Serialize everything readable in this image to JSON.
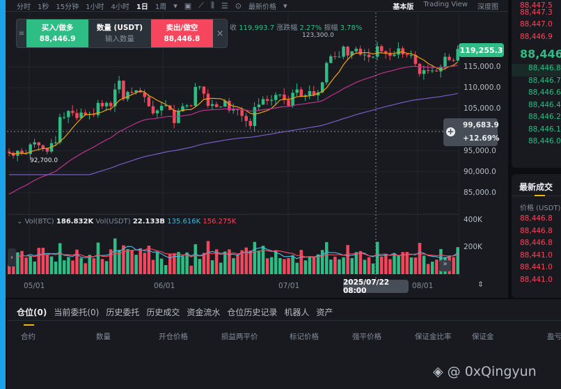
{
  "toolbar": {
    "intervals": [
      "分时",
      "1秒",
      "15分钟",
      "1小时",
      "4小时",
      "1日",
      "1周"
    ],
    "active": "1日",
    "price_type": "最新价格",
    "views": [
      "基本版",
      "Trading View",
      "深度图"
    ],
    "active_view": "基本版"
  },
  "info": {
    "close_label": "收",
    "close": "119,993.7",
    "change_label": "涨跌幅",
    "change": "2.27%",
    "amp_label": "振幅",
    "amp": "3.78%"
  },
  "order_widget": {
    "buy_label": "买入/做多",
    "buy_price": "88,446.9",
    "qty_label": "数量 (USDT)",
    "qty_placeholder": "输入数量",
    "sell_label": "卖出/做空",
    "sell_price": "88,446.8"
  },
  "price_axis": [
    "115,000.0",
    "110,000.0",
    "105,000.0",
    "100,000.0",
    "95,000.0",
    "90,000.0",
    "85,000.0"
  ],
  "last_price": "119,255.3",
  "high_marker": "123,300.0",
  "low_marker": "92,700.0",
  "crosshair": {
    "price": "99,683.9",
    "pct": "+12.69%",
    "date": "2025/07/22 08:00"
  },
  "volume": {
    "label_btc": "Vol(BTC)",
    "vol_btc": "186.832K",
    "label_usdt": "Vol(USDT)",
    "vol_usdt": "22.133B",
    "ma1": "135.616K",
    "ma2": "156.275K",
    "axis": [
      "400K",
      "200K"
    ]
  },
  "date_axis": [
    "05/01",
    "06/01",
    "07/01",
    "08/01"
  ],
  "colors": {
    "up": "#2ebd85",
    "down": "#f6465d",
    "ma7": "#f0a30a",
    "ma25": "#c2318f",
    "ma99": "#7b5bc7"
  },
  "chart_data": {
    "type": "candlestick",
    "start_date": "2025-04-26",
    "ylim": [
      82000,
      126000
    ],
    "closes": [
      94500,
      93800,
      95000,
      94300,
      94200,
      96500,
      97000,
      96300,
      95500,
      94800,
      96800,
      97000,
      103000,
      103000,
      104500,
      104000,
      102800,
      104100,
      103500,
      103700,
      103500,
      106400,
      105600,
      106400,
      105600,
      109600,
      111700,
      107300,
      109000,
      108900,
      109400,
      108900,
      107800,
      105600,
      103900,
      104600,
      105700,
      105800,
      104700,
      101600,
      104400,
      105600,
      105800,
      105700,
      110200,
      110300,
      108600,
      105700,
      106100,
      105400,
      105500,
      106900,
      104600,
      104900,
      104700,
      103300,
      102100,
      100900,
      105400,
      106000,
      107300,
      106900,
      107100,
      108300,
      108400,
      107100,
      105700,
      108800,
      109600,
      108000,
      108200,
      109200,
      108200,
      108900,
      111300,
      115900,
      117500,
      117400,
      117400,
      119800,
      117700,
      118700,
      119300,
      117900,
      117900,
      117300,
      117400,
      119900,
      118700,
      118300,
      117600,
      117900,
      119400,
      118000,
      117800,
      117800,
      115700,
      113300,
      114200,
      114000,
      114100,
      113900,
      115000,
      117400,
      116600,
      116500,
      119255
    ]
  },
  "order_book": {
    "asks": [
      "88,447.5",
      "88,447.3",
      "88,447.0",
      "88,446.9"
    ],
    "mid": "88,446.",
    "bids": [
      "88,446.8",
      "88,446.7",
      "88,446.6",
      "88,446.4",
      "88,446.2",
      "88,446.1",
      "88,446.0"
    ]
  },
  "trades": {
    "title": "最新成交",
    "col": "价格 (USDT)",
    "prices": [
      "88,446.8",
      "88,446.8",
      "88,446.8",
      "88,441.0",
      "88,441.0",
      "88,441.0"
    ]
  },
  "bottom": {
    "tabs": [
      "仓位(0)",
      "当前委托(0)",
      "历史委托",
      "历史成交",
      "资金流水",
      "仓位历史记录",
      "机器人",
      "资产"
    ],
    "cols": [
      "合约",
      "数量",
      "开仓价格",
      "损益两平价",
      "标记价格",
      "强平价格",
      "保证金比率",
      "保证金",
      "盈亏"
    ]
  },
  "watermark": "@ 0xQingyun"
}
